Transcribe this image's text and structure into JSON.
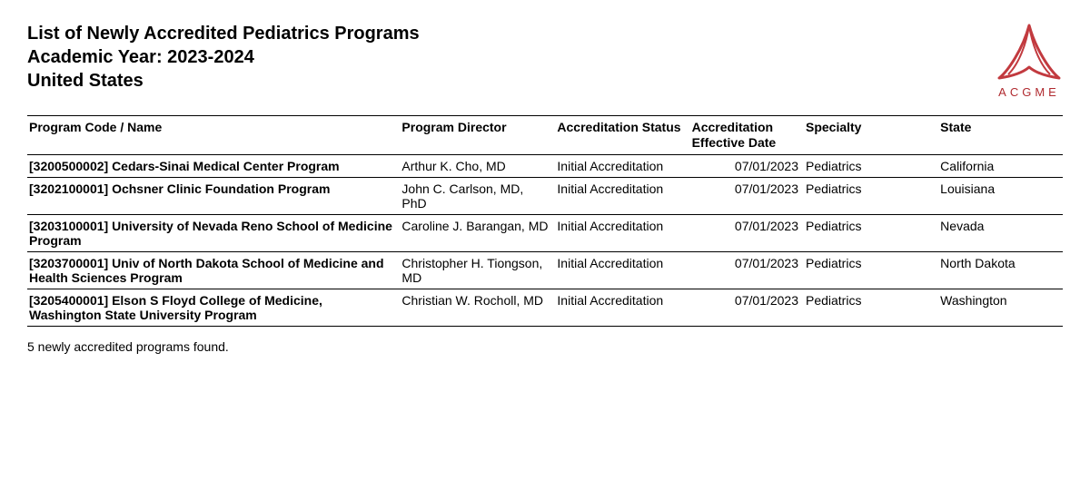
{
  "header": {
    "line1": "List of Newly Accredited Pediatrics Programs",
    "line2": "Academic Year: 2023-2024",
    "line3": "United States"
  },
  "logo": {
    "text": "ACGME",
    "color": "#b02a2f"
  },
  "table": {
    "columns": [
      "Program Code / Name",
      "Program Director",
      "Accreditation Status",
      "Accreditation Effective Date",
      "Specialty",
      "State"
    ],
    "rows": [
      {
        "name": "[3200500002] Cedars-Sinai Medical Center Program",
        "director": "Arthur K. Cho, MD",
        "status": "Initial Accreditation",
        "date": "07/01/2023",
        "specialty": "Pediatrics",
        "state": "California"
      },
      {
        "name": "[3202100001] Ochsner Clinic Foundation Program",
        "director": "John C. Carlson, MD, PhD",
        "status": "Initial Accreditation",
        "date": "07/01/2023",
        "specialty": "Pediatrics",
        "state": "Louisiana"
      },
      {
        "name": "[3203100001] University of Nevada Reno School of Medicine Program",
        "director": "Caroline J. Barangan, MD",
        "status": "Initial Accreditation",
        "date": "07/01/2023",
        "specialty": "Pediatrics",
        "state": "Nevada"
      },
      {
        "name": "[3203700001] Univ of North Dakota School of Medicine and Health Sciences Program",
        "director": "Christopher H. Tiongson, MD",
        "status": "Initial Accreditation",
        "date": "07/01/2023",
        "specialty": "Pediatrics",
        "state": "North Dakota"
      },
      {
        "name": "[3205400001] Elson S Floyd College of Medicine, Washington State University Program",
        "director": "Christian W. Rocholl, MD",
        "status": "Initial Accreditation",
        "date": "07/01/2023",
        "specialty": "Pediatrics",
        "state": "Washington"
      }
    ]
  },
  "footer": "5 newly accredited programs found."
}
